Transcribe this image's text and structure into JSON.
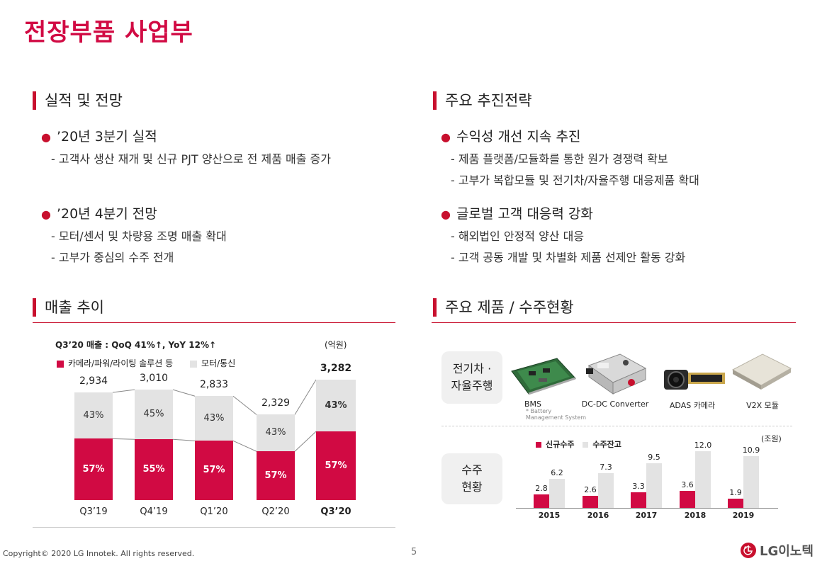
{
  "title": "전장부품 사업부",
  "performance": {
    "heading": "실적 및 전망",
    "items": [
      {
        "title": "’20년 3분기 실적",
        "subs": [
          "- 고객사 생산 재개 및 신규 PJT 양산으로 전 제품 매출 증가"
        ]
      },
      {
        "title": "’20년 4분기 전망",
        "subs": [
          "- 모터/센서 및 차량용 조명 매출 확대",
          "- 고부가 중심의 수주 전개"
        ]
      }
    ]
  },
  "strategy": {
    "heading": "주요 추진전략",
    "items": [
      {
        "title": "수익성 개선 지속 추진",
        "subs": [
          "- 제품 플랫폼/모듈화를 통한 원가 경쟁력 확보",
          "- 고부가 복합모듈 및 전기차/자율주행 대응제품 확대"
        ]
      },
      {
        "title": "글로벌 고객 대응력 강화",
        "subs": [
          "- 해외법인 안정적 양산 대응",
          "- 고객 공동 개발 및 차별화 제품 선제안 활동 강화"
        ]
      }
    ]
  },
  "sales": {
    "heading": "매출 추이",
    "summary": "Q3’20 매출 : QoQ 41%↑, YoY 12%↑",
    "unit": "(억원)",
    "legend": [
      "카메라/파워/라이팅 솔루션 등",
      "모터/통신"
    ]
  },
  "products": {
    "heading": "주요 제품 / 수주현황",
    "row1_label": "전기차 · 자율주행",
    "row2_label": "수주 현황",
    "items": [
      {
        "name": "BMS",
        "note": "* Battery Management System"
      },
      {
        "name": "DC-DC Converter"
      },
      {
        "name": "ADAS 카메라"
      },
      {
        "name": "V2X 모듈"
      }
    ]
  },
  "orders_unit": "(조원)",
  "orders_legend": [
    "신규수주",
    "수주잔고"
  ],
  "chart_data": [
    {
      "type": "bar",
      "title": "",
      "categories": [
        "Q3’19",
        "Q4’19",
        "Q1’20",
        "Q2’20",
        "Q3’20"
      ],
      "totals": [
        2934,
        3010,
        2833,
        2329,
        3282
      ],
      "totals_display": [
        "2,934",
        "3,010",
        "2,833",
        "2,329",
        "3,282"
      ],
      "series": [
        {
          "name": "카메라/파워/라이팅 솔루션 등",
          "values_pct": [
            57,
            55,
            57,
            57,
            57
          ],
          "labels": [
            "57%",
            "55%",
            "57%",
            "57%",
            "57%"
          ],
          "color": "#d10a43"
        },
        {
          "name": "모터/통신",
          "values_pct": [
            43,
            45,
            43,
            43,
            43
          ],
          "labels": [
            "43%",
            "45%",
            "43%",
            "43%",
            "43%"
          ],
          "color": "#e3e3e3"
        }
      ],
      "ylim": [
        0,
        3500
      ]
    },
    {
      "type": "bar",
      "title": "",
      "categories": [
        "2015",
        "2016",
        "2017",
        "2018",
        "2019"
      ],
      "series": [
        {
          "name": "신규수주",
          "values": [
            2.8,
            2.6,
            3.3,
            3.6,
            1.9
          ],
          "labels": [
            "2.8",
            "2.6",
            "3.3",
            "3.6",
            "1.9"
          ],
          "color": "#d10a43"
        },
        {
          "name": "수주잔고",
          "values": [
            6.2,
            7.3,
            9.5,
            12.0,
            10.9
          ],
          "labels": [
            "6.2",
            "7.3",
            "9.5",
            "12.0",
            "10.9"
          ],
          "color": "#e3e3e3"
        }
      ],
      "ylim": [
        0,
        13
      ]
    }
  ],
  "footer": {
    "copyright": "Copyright© 2020 LG Innotek. All rights reserved.",
    "page": "5",
    "logo_text": "LG이노텍"
  },
  "colors": {
    "accent": "#d10a43",
    "gray": "#e3e3e3"
  }
}
